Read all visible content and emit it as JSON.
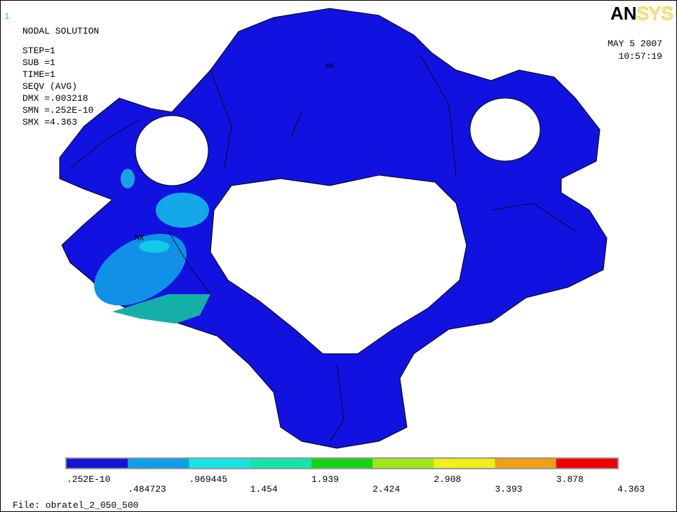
{
  "window_number": "1",
  "info": {
    "title": "NODAL SOLUTION",
    "lines": [
      "STEP=1",
      "SUB =1",
      "TIME=1",
      "SEQV     (AVG)",
      "DMX =.003218",
      "SMN =.252E-10",
      "SMX =4.363"
    ]
  },
  "logo": {
    "bold": "AN",
    "outline": "SYS"
  },
  "date": "MAY  5 2007",
  "time": "10:57:19",
  "markers": {
    "min": "MN",
    "max": "MX"
  },
  "legend": {
    "colors": [
      "#1414d6",
      "#0f9ee8",
      "#14e6e6",
      "#14e6a8",
      "#14d214",
      "#a0e614",
      "#f0f014",
      "#f0a014",
      "#f00000"
    ],
    "labels": [
      ".252E-10",
      ".484723",
      ".969445",
      "1.454",
      "1.939",
      "2.424",
      "2.908",
      "3.393",
      "3.878",
      "4.363"
    ]
  },
  "file": "File: obratel_2_050_500"
}
